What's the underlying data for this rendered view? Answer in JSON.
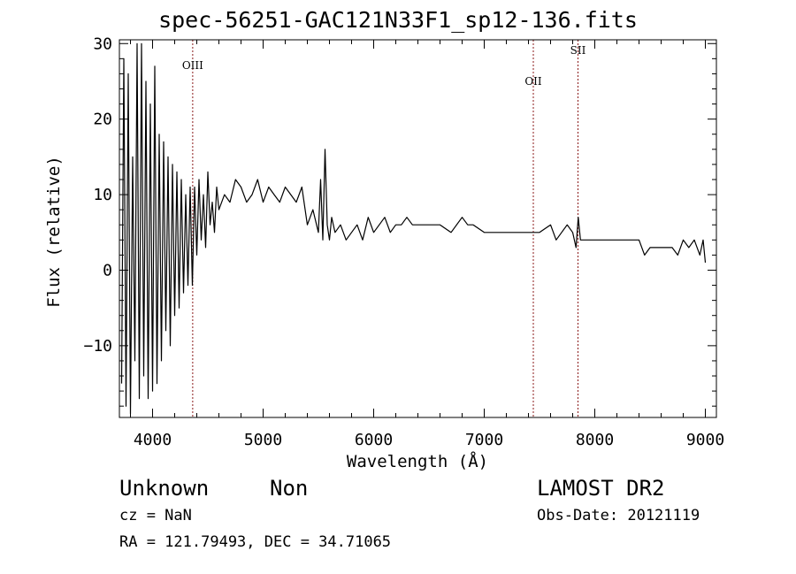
{
  "header": {
    "title": "spec-56251-GAC121N33F1_sp12-136.fits"
  },
  "footer": {
    "object_class": "Unknown",
    "object_subclass": "Non",
    "survey": "LAMOST DR2",
    "cz": "cz = NaN",
    "obs_date": "Obs-Date: 20121119",
    "ra_dec": "RA = 121.79493, DEC =  34.71065"
  },
  "colors": {
    "spectrum": "#000000",
    "line_markers": "#8b1a1a",
    "axes": "#000000"
  },
  "chart_data": {
    "type": "line",
    "title": "spec-56251-GAC121N33F1_sp12-136.fits",
    "xlabel": "Wavelength (Å)",
    "ylabel": "Flux (relative)",
    "xlim": [
      3700,
      9100
    ],
    "ylim": [
      -19.5,
      30.5
    ],
    "x_ticks": [
      4000,
      5000,
      6000,
      7000,
      8000,
      9000
    ],
    "y_ticks": [
      -10,
      0,
      10,
      20,
      30
    ],
    "grid": false,
    "legend": "none",
    "line_markers": [
      {
        "label": "OIII",
        "x": 4363
      },
      {
        "label": "OII",
        "x": 7444
      },
      {
        "label": "SII",
        "x": 7848
      }
    ],
    "series": [
      {
        "x": [
          3720,
          3740,
          3760,
          3780,
          3800,
          3820,
          3840,
          3860,
          3880,
          3900,
          3920,
          3940,
          3960,
          3980,
          4000,
          4020,
          4040,
          4060,
          4080,
          4100,
          4120,
          4140,
          4160,
          4180,
          4200,
          4220,
          4240,
          4260,
          4280,
          4300,
          4320,
          4340,
          4360,
          4380,
          4400,
          4420,
          4440,
          4460,
          4480,
          4500,
          4520,
          4540,
          4560,
          4580,
          4600,
          4650,
          4700,
          4750,
          4800,
          4850,
          4900,
          4950,
          5000,
          5050,
          5100,
          5150,
          5200,
          5250,
          5300,
          5350,
          5400,
          5450,
          5500,
          5520,
          5540,
          5560,
          5580,
          5600,
          5620,
          5650,
          5700,
          5750,
          5800,
          5850,
          5900,
          5950,
          6000,
          6050,
          6100,
          6150,
          6200,
          6250,
          6300,
          6350,
          6400,
          6500,
          6600,
          6700,
          6800,
          6850,
          6900,
          7000,
          7100,
          7200,
          7300,
          7400,
          7450,
          7500,
          7600,
          7650,
          7700,
          7750,
          7800,
          7830,
          7850,
          7870,
          7900,
          8000,
          8100,
          8200,
          8300,
          8400,
          8450,
          8500,
          8600,
          8700,
          8750,
          8800,
          8850,
          8900,
          8950,
          8980,
          9000
        ],
        "y": [
          -15,
          28,
          -18,
          26,
          -19,
          15,
          -12,
          30,
          -17,
          30,
          -14,
          25,
          -17,
          22,
          -16,
          27,
          -15,
          18,
          -12,
          17,
          -8,
          15,
          -10,
          14,
          -6,
          13,
          -5,
          12,
          -3,
          10,
          -2,
          11,
          -2,
          11,
          2,
          12,
          4,
          10,
          3,
          13,
          6,
          9,
          5,
          11,
          8,
          10,
          9,
          12,
          11,
          9,
          10,
          12,
          9,
          11,
          10,
          9,
          11,
          10,
          9,
          11,
          6,
          8,
          5,
          12,
          4,
          16,
          6,
          4,
          7,
          5,
          6,
          4,
          5,
          6,
          4,
          7,
          5,
          6,
          7,
          5,
          6,
          6,
          7,
          6,
          6,
          6,
          6,
          5,
          7,
          6,
          6,
          5,
          5,
          5,
          5,
          5,
          5,
          5,
          6,
          4,
          5,
          6,
          5,
          3,
          7,
          4,
          4,
          4,
          4,
          4,
          4,
          4,
          2,
          3,
          3,
          3,
          2,
          4,
          3,
          4,
          2,
          4,
          1
        ]
      }
    ]
  }
}
